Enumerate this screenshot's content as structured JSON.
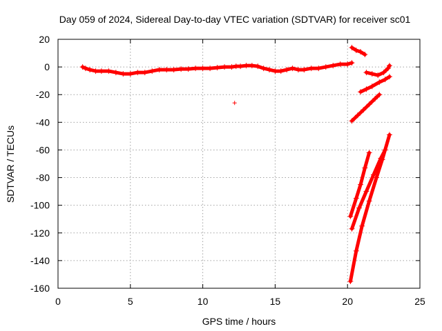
{
  "chart_data": {
    "type": "scatter",
    "title": "Day 059 of 2024, Sidereal Day-to-day VTEC variation (SDTVAR) for receiver sc01",
    "xlabel": "GPS time / hours",
    "ylabel": "SDTVAR / TECUs",
    "xlim": [
      0,
      25
    ],
    "ylim": [
      -160,
      20
    ],
    "xticks": [
      0,
      5,
      10,
      15,
      20,
      25
    ],
    "yticks": [
      20,
      0,
      -20,
      -40,
      -60,
      -80,
      -100,
      -120,
      -140,
      -160
    ],
    "grid": true,
    "legend": "none",
    "marker": "+",
    "series_color": "#ff0000",
    "series": [
      {
        "points": [
          [
            1.7,
            0
          ],
          [
            1.9,
            -1
          ],
          [
            2.2,
            -2
          ],
          [
            2.6,
            -3
          ],
          [
            3.0,
            -3
          ],
          [
            3.5,
            -3
          ],
          [
            4.0,
            -4
          ],
          [
            4.5,
            -5
          ],
          [
            5.0,
            -5
          ],
          [
            5.5,
            -4
          ],
          [
            6.0,
            -4
          ],
          [
            6.5,
            -3
          ],
          [
            7.0,
            -2
          ],
          [
            7.5,
            -2
          ],
          [
            8.0,
            -2
          ],
          [
            8.5,
            -1.5
          ],
          [
            9.0,
            -1.5
          ],
          [
            9.5,
            -1
          ],
          [
            10.0,
            -1
          ],
          [
            10.5,
            -1
          ],
          [
            11.0,
            -0.5
          ],
          [
            11.5,
            0
          ],
          [
            12.0,
            0
          ],
          [
            12.3,
            0.5
          ],
          [
            12.6,
            0.5
          ],
          [
            13.0,
            1
          ],
          [
            13.4,
            1
          ],
          [
            13.8,
            0.5
          ],
          [
            14.2,
            -1
          ],
          [
            14.6,
            -2
          ],
          [
            15.0,
            -3
          ],
          [
            15.4,
            -3
          ],
          [
            15.8,
            -2
          ],
          [
            16.2,
            -1
          ],
          [
            16.6,
            -2
          ],
          [
            17.0,
            -2
          ],
          [
            17.5,
            -1
          ],
          [
            18.0,
            -1
          ],
          [
            18.5,
            0
          ],
          [
            19.0,
            1
          ],
          [
            19.5,
            2
          ],
          [
            20.0,
            2
          ],
          [
            20.3,
            3
          ]
        ]
      },
      {
        "points": [
          [
            20.3,
            14
          ],
          [
            20.6,
            12
          ],
          [
            20.9,
            11
          ],
          [
            21.2,
            9
          ]
        ]
      },
      {
        "points": [
          [
            21.3,
            -4
          ],
          [
            21.7,
            -5
          ],
          [
            22.1,
            -6
          ],
          [
            22.5,
            -4
          ],
          [
            22.8,
            -1
          ],
          [
            22.9,
            1
          ]
        ]
      },
      {
        "points": [
          [
            20.9,
            -18
          ],
          [
            21.3,
            -16
          ],
          [
            21.7,
            -14
          ],
          [
            22.2,
            -11
          ],
          [
            22.6,
            -9
          ],
          [
            22.9,
            -7
          ]
        ]
      },
      {
        "points": [
          [
            20.3,
            -39
          ],
          [
            20.7,
            -35
          ],
          [
            21.1,
            -31
          ],
          [
            21.5,
            -27
          ],
          [
            21.9,
            -23
          ],
          [
            22.2,
            -20
          ]
        ]
      },
      {
        "points": [
          [
            20.2,
            -108
          ],
          [
            20.6,
            -95
          ],
          [
            20.9,
            -85
          ],
          [
            21.2,
            -73
          ],
          [
            21.5,
            -62
          ]
        ]
      },
      {
        "points": [
          [
            20.3,
            -117
          ],
          [
            20.8,
            -102
          ],
          [
            21.3,
            -90
          ],
          [
            21.8,
            -78
          ],
          [
            22.3,
            -66
          ],
          [
            22.6,
            -60
          ]
        ]
      },
      {
        "points": [
          [
            20.2,
            -155
          ],
          [
            20.6,
            -133
          ],
          [
            21.0,
            -115
          ],
          [
            21.5,
            -97
          ],
          [
            22.0,
            -80
          ],
          [
            22.4,
            -67
          ],
          [
            22.9,
            -49
          ]
        ]
      },
      {
        "points": [
          [
            12.2,
            -26
          ]
        ]
      }
    ]
  }
}
